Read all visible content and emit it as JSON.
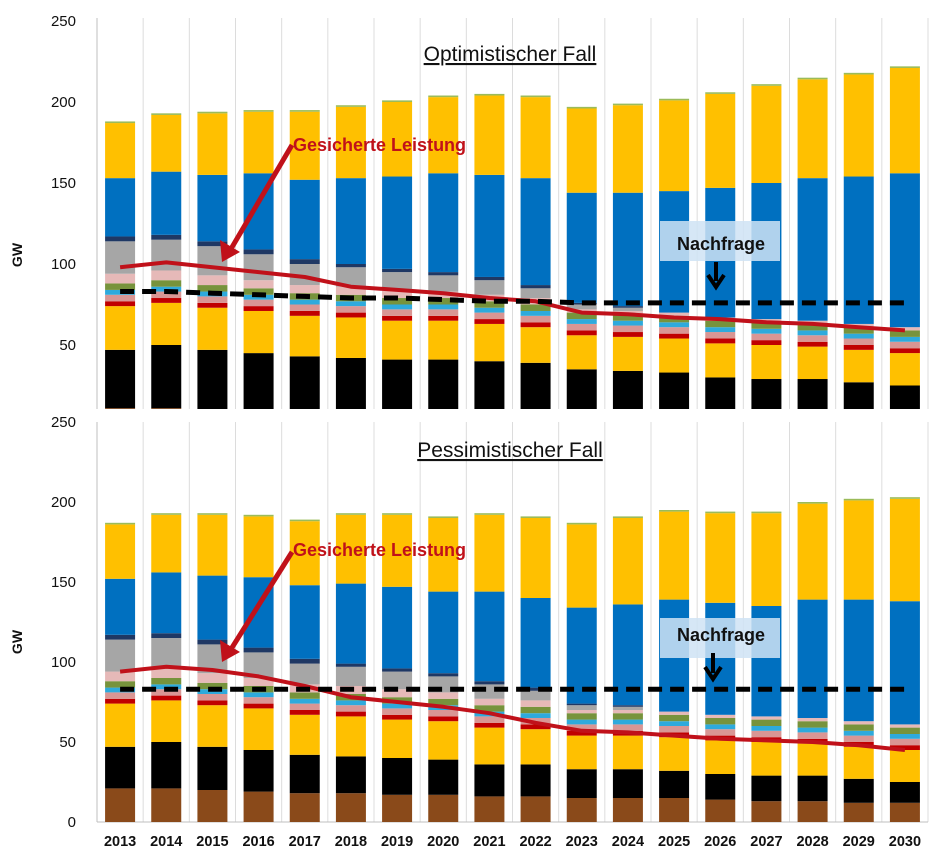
{
  "chart_data": [
    {
      "type": "bar",
      "stacked": true,
      "title": "Optimistischer Fall",
      "ylabel": "GW",
      "xlabel": "",
      "ylim": [
        0,
        250
      ],
      "yticks": [
        50,
        100,
        150,
        200,
        250
      ],
      "grid": "vertical",
      "categories": [
        "2013",
        "2014",
        "2015",
        "2016",
        "2017",
        "2018",
        "2019",
        "2020",
        "2021",
        "2022",
        "2023",
        "2024",
        "2025",
        "2026",
        "2027",
        "2028",
        "2029",
        "2030"
      ],
      "series": [
        {
          "color": "#8a4a1a",
          "values": [
            11,
            11,
            10,
            9,
            8,
            7,
            7,
            7,
            7,
            6,
            4,
            4,
            4,
            3,
            3,
            3,
            3,
            2
          ]
        },
        {
          "color": "#000000",
          "values": [
            36,
            39,
            37,
            36,
            35,
            35,
            34,
            34,
            33,
            33,
            31,
            30,
            29,
            27,
            26,
            26,
            24,
            23
          ]
        },
        {
          "color": "#ffc000",
          "values": [
            27,
            26,
            26,
            26,
            25,
            25,
            24,
            24,
            23,
            22,
            21,
            21,
            21,
            21,
            21,
            20,
            20,
            20
          ]
        },
        {
          "color": "#c00000",
          "values": [
            3,
            3,
            3,
            3,
            3,
            3,
            3,
            3,
            3,
            3,
            3,
            3,
            3,
            3,
            3,
            3,
            3,
            3
          ]
        },
        {
          "color": "#d99694",
          "values": [
            4,
            4,
            4,
            4,
            4,
            4,
            4,
            4,
            4,
            4,
            4,
            4,
            4,
            4,
            4,
            4,
            4,
            4
          ]
        },
        {
          "color": "#2eaadc",
          "values": [
            3,
            3,
            3,
            3,
            3,
            3,
            3,
            3,
            3,
            3,
            3,
            3,
            3,
            3,
            3,
            3,
            3,
            3
          ]
        },
        {
          "color": "#77933c",
          "values": [
            4,
            4,
            4,
            4,
            4,
            4,
            4,
            4,
            4,
            4,
            4,
            4,
            4,
            4,
            4,
            4,
            4,
            4
          ]
        },
        {
          "color": "#e6b9b8",
          "values": [
            6,
            6,
            6,
            5,
            5,
            5,
            5,
            4,
            4,
            4,
            2,
            2,
            2,
            2,
            2,
            2,
            2,
            2
          ]
        },
        {
          "color": "#a6a6a6",
          "values": [
            20,
            19,
            18,
            16,
            13,
            12,
            11,
            10,
            9,
            6,
            3,
            2,
            0,
            0,
            0,
            0,
            0,
            0
          ]
        },
        {
          "color": "#1f3864",
          "values": [
            3,
            3,
            3,
            3,
            3,
            2,
            2,
            2,
            2,
            2,
            1,
            1,
            0,
            0,
            0,
            0,
            0,
            0
          ]
        },
        {
          "color": "#0070c0",
          "values": [
            36,
            39,
            41,
            47,
            49,
            53,
            57,
            61,
            63,
            66,
            68,
            70,
            75,
            80,
            84,
            88,
            91,
            95
          ]
        },
        {
          "color": "#ffc000",
          "values": [
            34,
            35,
            38,
            38,
            42,
            44,
            46,
            47,
            49,
            50,
            52,
            54,
            56,
            58,
            60,
            61,
            63,
            65
          ]
        },
        {
          "color": "#9bbb59",
          "values": [
            1,
            1,
            1,
            1,
            1,
            1,
            1,
            1,
            1,
            1,
            1,
            1,
            1,
            1,
            1,
            1,
            1,
            1
          ]
        }
      ],
      "lines": [
        {
          "name": "Gesicherte Leistung",
          "color": "#c0111a",
          "style": "solid",
          "values": [
            98,
            101,
            98,
            95,
            92,
            86,
            84,
            82,
            79,
            77,
            70,
            69,
            67,
            66,
            64,
            63,
            61,
            59
          ]
        },
        {
          "name": "Nachfrage",
          "color": "#000000",
          "style": "dashed",
          "values": [
            83,
            83,
            82,
            81,
            80,
            79,
            79,
            78,
            77,
            77,
            76,
            76,
            76,
            76,
            76,
            76,
            76,
            76
          ]
        }
      ],
      "annotations": [
        {
          "text": "Gesicherte Leistung",
          "target": "2015"
        },
        {
          "text": "Nachfrage",
          "target": "2026"
        }
      ]
    },
    {
      "type": "bar",
      "stacked": true,
      "title": "Pessimistischer Fall",
      "ylabel": "GW",
      "xlabel": "",
      "ylim": [
        0,
        250
      ],
      "yticks": [
        0,
        50,
        100,
        150,
        200,
        250
      ],
      "grid": "vertical",
      "categories": [
        "2013",
        "2014",
        "2015",
        "2016",
        "2017",
        "2018",
        "2019",
        "2020",
        "2021",
        "2022",
        "2023",
        "2024",
        "2025",
        "2026",
        "2027",
        "2028",
        "2029",
        "2030"
      ],
      "series": [
        {
          "color": "#8a4a1a",
          "values": [
            21,
            21,
            20,
            19,
            18,
            18,
            17,
            17,
            16,
            16,
            15,
            15,
            15,
            14,
            13,
            13,
            12,
            12
          ]
        },
        {
          "color": "#000000",
          "values": [
            26,
            29,
            27,
            26,
            24,
            23,
            23,
            22,
            20,
            20,
            18,
            18,
            17,
            16,
            16,
            16,
            15,
            13
          ]
        },
        {
          "color": "#ffc000",
          "values": [
            27,
            26,
            26,
            26,
            25,
            25,
            24,
            24,
            23,
            22,
            21,
            21,
            21,
            21,
            21,
            20,
            20,
            20
          ]
        },
        {
          "color": "#c00000",
          "values": [
            3,
            3,
            3,
            3,
            3,
            3,
            3,
            3,
            3,
            3,
            3,
            3,
            3,
            3,
            3,
            3,
            3,
            3
          ]
        },
        {
          "color": "#d99694",
          "values": [
            4,
            4,
            4,
            4,
            4,
            4,
            4,
            4,
            4,
            4,
            4,
            4,
            4,
            4,
            4,
            4,
            4,
            4
          ]
        },
        {
          "color": "#2eaadc",
          "values": [
            3,
            3,
            3,
            3,
            3,
            3,
            3,
            3,
            3,
            3,
            3,
            3,
            3,
            3,
            3,
            3,
            3,
            3
          ]
        },
        {
          "color": "#77933c",
          "values": [
            4,
            4,
            4,
            4,
            4,
            4,
            4,
            4,
            4,
            4,
            4,
            4,
            4,
            4,
            4,
            4,
            4,
            4
          ]
        },
        {
          "color": "#e6b9b8",
          "values": [
            6,
            6,
            6,
            5,
            5,
            5,
            5,
            4,
            4,
            4,
            2,
            2,
            2,
            2,
            2,
            2,
            2,
            2
          ]
        },
        {
          "color": "#a6a6a6",
          "values": [
            20,
            19,
            18,
            16,
            13,
            12,
            11,
            10,
            9,
            6,
            3,
            2,
            0,
            0,
            0,
            0,
            0,
            0
          ]
        },
        {
          "color": "#1f3864",
          "values": [
            3,
            3,
            3,
            3,
            3,
            2,
            2,
            2,
            2,
            2,
            1,
            1,
            0,
            0,
            0,
            0,
            0,
            0
          ]
        },
        {
          "color": "#0070c0",
          "values": [
            35,
            38,
            40,
            44,
            46,
            50,
            51,
            51,
            56,
            56,
            60,
            63,
            70,
            70,
            69,
            74,
            76,
            77
          ]
        },
        {
          "color": "#ffc000",
          "values": [
            34,
            36,
            38,
            38,
            40,
            43,
            45,
            46,
            48,
            50,
            52,
            54,
            55,
            56,
            58,
            60,
            62,
            64
          ]
        },
        {
          "color": "#9bbb59",
          "values": [
            1,
            1,
            1,
            1,
            1,
            1,
            1,
            1,
            1,
            1,
            1,
            1,
            1,
            1,
            1,
            1,
            1,
            1
          ]
        }
      ],
      "lines": [
        {
          "name": "Gesicherte Leistung",
          "color": "#c0111a",
          "style": "solid",
          "values": [
            94,
            97,
            95,
            91,
            85,
            78,
            75,
            72,
            68,
            62,
            57,
            56,
            54,
            52,
            51,
            50,
            48,
            45
          ]
        },
        {
          "name": "Nachfrage",
          "color": "#000000",
          "style": "dashed",
          "values": [
            83,
            83,
            83,
            83,
            83,
            83,
            83,
            83,
            83,
            83,
            83,
            83,
            83,
            83,
            83,
            83,
            83,
            83
          ]
        }
      ],
      "annotations": [
        {
          "text": "Gesicherte Leistung",
          "target": "2015"
        },
        {
          "text": "Nachfrage",
          "target": "2026"
        }
      ]
    }
  ]
}
